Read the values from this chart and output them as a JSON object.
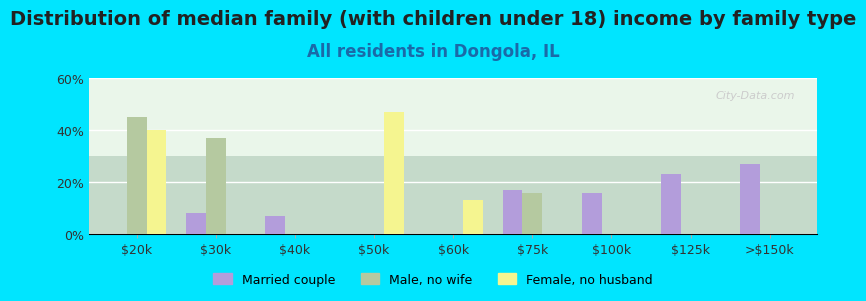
{
  "title": "Distribution of median family (with children under 18) income by family type",
  "subtitle": "All residents in Dongola, IL",
  "categories": [
    "$20k",
    "$30k",
    "$40k",
    "$50k",
    "$60k",
    "$75k",
    "$100k",
    "$125k",
    ">$150k"
  ],
  "married_couple": [
    0,
    8,
    7,
    0,
    0,
    17,
    16,
    23,
    27
  ],
  "male_no_wife": [
    45,
    37,
    0,
    0,
    0,
    16,
    0,
    0,
    0
  ],
  "female_no_husband": [
    40,
    0,
    0,
    47,
    13,
    0,
    0,
    0,
    0
  ],
  "colors": {
    "married_couple": "#b39ddb",
    "male_no_wife": "#b5c9a0",
    "female_no_husband": "#f5f590"
  },
  "ylim": [
    0,
    60
  ],
  "yticks": [
    0,
    20,
    40,
    60
  ],
  "background_chart": "#e8f5e9",
  "background_outer": "#00e5ff",
  "title_fontsize": 14,
  "subtitle_fontsize": 12,
  "watermark": "City-Data.com"
}
